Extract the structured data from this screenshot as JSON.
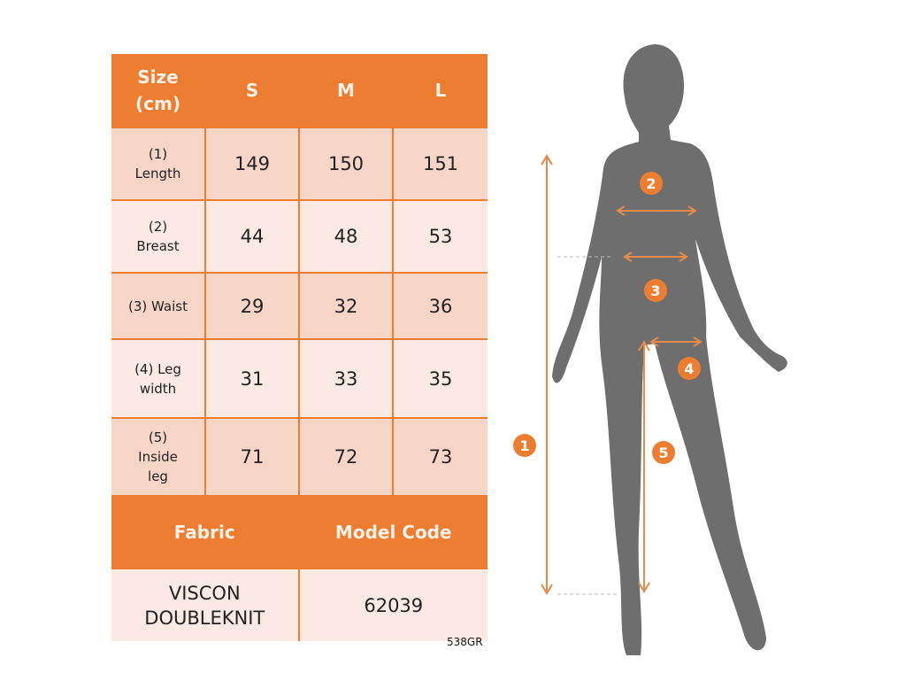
{
  "table": {
    "header": {
      "label": "Size (cm)",
      "sizes": [
        "S",
        "M",
        "L"
      ]
    },
    "rows": [
      {
        "label": "(1) Length",
        "values": [
          "149",
          "150",
          "151"
        ]
      },
      {
        "label": "(2) Breast",
        "values": [
          "44",
          "48",
          "53"
        ]
      },
      {
        "label": "(3) Waist",
        "values": [
          "29",
          "32",
          "36"
        ]
      },
      {
        "label": "(4) Leg width",
        "values": [
          "31",
          "33",
          "35"
        ]
      },
      {
        "label": "(5) Inside leg",
        "values": [
          "71",
          "72",
          "73"
        ]
      }
    ],
    "fabric_header": "Fabric",
    "model_code_header": "Model Code",
    "fabric": "VISCON DOUBLEKNIT",
    "model_code": "62039"
  },
  "product_code": "538GR",
  "figure": {
    "markers": [
      "1",
      "2",
      "3",
      "4",
      "5"
    ]
  },
  "colors": {
    "accent": "#ed7d31",
    "silhouette": "#6e6e6e",
    "cell_dark": "#f7d6c8",
    "cell_light": "#fbe9e3"
  }
}
